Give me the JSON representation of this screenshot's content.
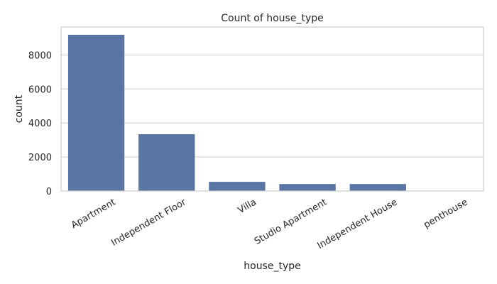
{
  "chart_data": {
    "type": "bar",
    "title": "Count of house_type",
    "xlabel": "house_type",
    "ylabel": "count",
    "categories": [
      "Apartment",
      "Independent Floor",
      "Villa",
      "Studio Apartment",
      "Independent House",
      "penthouse"
    ],
    "values": [
      9190,
      3340,
      540,
      410,
      410,
      20
    ],
    "ylim": [
      0,
      9650
    ],
    "yticks": [
      0,
      2000,
      4000,
      6000,
      8000
    ],
    "grid": true,
    "bar_color": "#5975a4"
  }
}
